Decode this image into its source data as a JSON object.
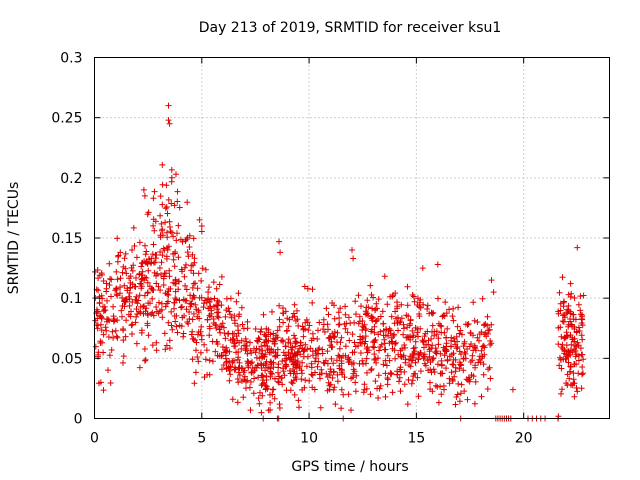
{
  "chart_data": {
    "type": "scatter",
    "title": "Day 213 of 2019, SRMTID for receiver ksu1",
    "xlabel": "GPS time / hours",
    "ylabel": "SRMTID / TECUs",
    "xlim": [
      0,
      24
    ],
    "ylim": [
      0,
      0.3
    ],
    "xticks": [
      0,
      5,
      10,
      15,
      20
    ],
    "xtick_labels": [
      "0",
      "5",
      "10",
      "15",
      "20"
    ],
    "yticks": [
      0,
      0.05,
      0.1,
      0.15,
      0.2,
      0.25,
      0.3
    ],
    "ytick_labels": [
      "0",
      "0.05",
      "0.1",
      "0.15",
      "0.2",
      "0.25",
      "0.3"
    ],
    "grid": true,
    "marker": "plus",
    "series_color": "#e00000",
    "trend": {
      "hours": [
        0,
        0.5,
        1,
        1.5,
        2,
        2.5,
        3,
        3.5,
        4,
        4.5,
        5,
        5.5,
        6,
        6.5,
        7,
        7.5,
        8,
        8.5,
        9,
        9.5,
        10,
        10.5,
        11,
        11.5,
        12,
        12.5,
        13,
        13.5,
        14,
        14.5,
        15,
        15.5,
        16,
        16.5,
        17,
        17.5,
        18,
        18.5
      ],
      "center": [
        0.085,
        0.085,
        0.09,
        0.095,
        0.1,
        0.11,
        0.13,
        0.13,
        0.12,
        0.11,
        0.09,
        0.08,
        0.065,
        0.06,
        0.05,
        0.045,
        0.04,
        0.05,
        0.055,
        0.055,
        0.05,
        0.05,
        0.05,
        0.055,
        0.06,
        0.06,
        0.065,
        0.065,
        0.065,
        0.06,
        0.065,
        0.06,
        0.06,
        0.055,
        0.05,
        0.05,
        0.055,
        0.055
      ],
      "spread": [
        0.025,
        0.025,
        0.025,
        0.025,
        0.025,
        0.03,
        0.035,
        0.035,
        0.03,
        0.03,
        0.025,
        0.025,
        0.02,
        0.02,
        0.018,
        0.018,
        0.018,
        0.02,
        0.02,
        0.02,
        0.02,
        0.02,
        0.02,
        0.02,
        0.022,
        0.022,
        0.022,
        0.022,
        0.022,
        0.022,
        0.022,
        0.022,
        0.022,
        0.02,
        0.02,
        0.02,
        0.02,
        0.02
      ]
    },
    "outliers": [
      {
        "x": 3.45,
        "y": 0.26
      },
      {
        "x": 3.45,
        "y": 0.248
      },
      {
        "x": 3.5,
        "y": 0.245
      },
      {
        "x": 3.6,
        "y": 0.2
      },
      {
        "x": 3.8,
        "y": 0.203
      },
      {
        "x": 2.3,
        "y": 0.19
      },
      {
        "x": 2.35,
        "y": 0.185
      },
      {
        "x": 4.9,
        "y": 0.165
      },
      {
        "x": 5.0,
        "y": 0.16
      },
      {
        "x": 8.6,
        "y": 0.147
      },
      {
        "x": 8.65,
        "y": 0.138
      },
      {
        "x": 12.0,
        "y": 0.14
      },
      {
        "x": 12.05,
        "y": 0.133
      },
      {
        "x": 16.0,
        "y": 0.128
      },
      {
        "x": 15.3,
        "y": 0.125
      },
      {
        "x": 18.5,
        "y": 0.115
      },
      {
        "x": 18.6,
        "y": 0.105
      },
      {
        "x": 1.2,
        "y": 0.138
      },
      {
        "x": 0.3,
        "y": 0.03
      },
      {
        "x": 9.5,
        "y": 0.015
      },
      {
        "x": 14.6,
        "y": 0.012
      },
      {
        "x": 19.5,
        "y": 0.024
      },
      {
        "x": 22.5,
        "y": 0.142
      }
    ],
    "late_cluster": {
      "x_start": 21.6,
      "x_end": 22.8,
      "center": 0.065,
      "spread": 0.025
    },
    "zero_points_x": [
      18.7,
      18.8,
      18.9,
      19.0,
      19.1,
      19.2,
      19.3,
      19.4,
      20.2,
      20.4,
      20.6,
      20.8,
      21.0,
      21.6
    ]
  }
}
